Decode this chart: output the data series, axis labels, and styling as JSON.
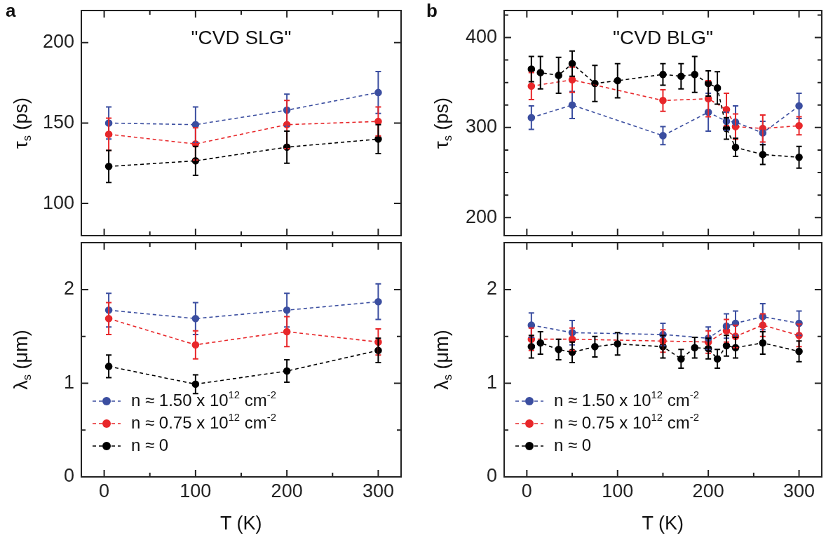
{
  "chart_data": [
    {
      "type": "line",
      "title": "\"CVD SLG\"",
      "ylabel": "τ$_{s}$ (ps)",
      "annotations": [
        "a"
      ],
      "xlim": [
        -25,
        325
      ],
      "xticks": [
        0,
        {
          "value": 50,
          "label": null
        },
        100,
        {
          "value": 150,
          "label": null
        },
        200,
        {
          "value": 250,
          "label": null
        },
        300
      ],
      "ylim": [
        80,
        220
      ],
      "yticks": [
        100,
        150,
        200
      ],
      "tick_labels": "y",
      "marker": "circle",
      "line_style": "dashed",
      "x": [
        5,
        100,
        200,
        300
      ],
      "series": [
        {
          "color": "#3b4ea0",
          "values": [
            150,
            149,
            158,
            169
          ],
          "errors": [
            10,
            11,
            10,
            13
          ]
        },
        {
          "color": "#e8272a",
          "values": [
            143,
            137,
            149,
            151
          ],
          "errors": [
            10,
            10,
            15,
            9
          ]
        },
        {
          "color": "#000000",
          "values": [
            123,
            126.5,
            135,
            140
          ],
          "errors": [
            10,
            9,
            10,
            9
          ]
        }
      ]
    },
    {
      "type": "line",
      "xlabel": "T (K)",
      "ylabel": "λ$_{s}$ (μm)",
      "legend": "bottom left",
      "xlim": [
        -25,
        325
      ],
      "xticks": [
        0,
        {
          "value": 50,
          "label": null
        },
        100,
        {
          "value": 150,
          "label": null
        },
        200,
        {
          "value": 250,
          "label": null
        },
        300
      ],
      "ylim": [
        0,
        2.5
      ],
      "yticks": [
        0,
        {
          "value": 0.5,
          "label": null
        },
        1,
        {
          "value": 1.5,
          "label": null
        },
        2
      ],
      "marker": "circle",
      "line_style": "dashed",
      "x": [
        5,
        100,
        200,
        300
      ],
      "series": [
        {
          "name": "n ≈ 1.50 x 10$^{12}$ cm$^{-2}$",
          "color": "#3b4ea0",
          "values": [
            1.78,
            1.69,
            1.78,
            1.87
          ],
          "errors": [
            0.18,
            0.17,
            0.18,
            0.19
          ]
        },
        {
          "name": "n ≈ 0.75 x 10$^{12}$ cm$^{-2}$",
          "color": "#e8272a",
          "values": [
            1.69,
            1.41,
            1.55,
            1.44
          ],
          "errors": [
            0.17,
            0.15,
            0.16,
            0.14
          ]
        },
        {
          "name": "n ≈ 0",
          "color": "#000000",
          "values": [
            1.18,
            0.99,
            1.13,
            1.35
          ],
          "errors": [
            0.12,
            0.1,
            0.12,
            0.13
          ]
        }
      ]
    },
    {
      "type": "line",
      "title": "\"CVD BLG\"",
      "ylabel": "τ$_{s}$ (ps)",
      "annotations": [
        "b"
      ],
      "xlim": [
        -25,
        325
      ],
      "xticks": [
        0,
        {
          "value": 50,
          "label": null
        },
        100,
        {
          "value": 150,
          "label": null
        },
        200,
        {
          "value": 250,
          "label": null
        },
        300
      ],
      "ylim": [
        180,
        430
      ],
      "yticks": [
        200,
        {
          "value": 225,
          "label": null
        },
        {
          "value": 250,
          "label": null
        },
        {
          "value": 275,
          "label": null
        },
        300,
        {
          "value": 325,
          "label": null
        },
        {
          "value": 350,
          "label": null
        },
        {
          "value": 375,
          "label": null
        },
        400,
        {
          "value": 425,
          "label": null
        }
      ],
      "tick_labels": "y",
      "marker": "circle",
      "line_style": "dashed",
      "series": [
        {
          "color": "#3b4ea0",
          "x": [
            5,
            50,
            150,
            200,
            220,
            230,
            260,
            300
          ],
          "values": [
            311,
            325,
            291,
            317,
            307,
            306,
            294,
            324
          ],
          "errors": [
            13,
            15,
            10,
            21,
            10,
            18,
            13,
            14
          ]
        },
        {
          "color": "#e8272a",
          "x": [
            5,
            50,
            150,
            200,
            220,
            230,
            260,
            300
          ],
          "values": [
            346,
            353,
            330,
            332,
            320,
            301,
            299,
            302
          ],
          "errors": [
            15,
            14,
            12,
            20,
            18,
            14,
            15,
            10
          ]
        },
        {
          "color": "#000000",
          "x": [
            5,
            15,
            35,
            50,
            75,
            100,
            150,
            170,
            185,
            200,
            210,
            220,
            230,
            260,
            300
          ],
          "values": [
            365,
            361,
            358,
            371,
            349,
            352,
            359,
            357,
            359,
            349,
            344,
            299,
            278,
            270,
            267
          ],
          "errors": [
            14,
            18,
            20,
            14,
            20,
            19,
            12,
            14,
            20,
            14,
            18,
            12,
            10,
            11,
            12
          ]
        }
      ]
    },
    {
      "type": "line",
      "xlabel": "T (K)",
      "ylabel": "λ$_{s}$ (μm)",
      "legend": "bottom left",
      "xlim": [
        -25,
        325
      ],
      "xticks": [
        0,
        {
          "value": 50,
          "label": null
        },
        100,
        {
          "value": 150,
          "label": null
        },
        200,
        {
          "value": 250,
          "label": null
        },
        300
      ],
      "ylim": [
        0,
        2.5
      ],
      "yticks": [
        0,
        {
          "value": 0.5,
          "label": null
        },
        1,
        {
          "value": 1.5,
          "label": null
        },
        2
      ],
      "marker": "circle",
      "line_style": "dashed",
      "series": [
        {
          "name": "n ≈ 1.50 x 10$^{12}$ cm$^{-2}$",
          "color": "#3b4ea0",
          "x": [
            5,
            50,
            150,
            200,
            220,
            230,
            260,
            300
          ],
          "values": [
            1.62,
            1.54,
            1.52,
            1.48,
            1.61,
            1.64,
            1.71,
            1.64
          ],
          "errors": [
            0.13,
            0.13,
            0.12,
            0.12,
            0.13,
            0.13,
            0.14,
            0.13
          ]
        },
        {
          "name": "n ≈ 0.75 x 10$^{12}$ cm$^{-2}$",
          "color": "#e8272a",
          "x": [
            5,
            50,
            150,
            200,
            220,
            230,
            260,
            300
          ],
          "values": [
            1.47,
            1.47,
            1.45,
            1.44,
            1.56,
            1.5,
            1.62,
            1.51
          ],
          "errors": [
            0.12,
            0.12,
            0.12,
            0.12,
            0.12,
            0.12,
            0.12,
            0.12
          ]
        },
        {
          "name": "n ≈ 0",
          "color": "#000000",
          "x": [
            5,
            15,
            35,
            50,
            75,
            100,
            150,
            170,
            185,
            200,
            210,
            220,
            230,
            260,
            300
          ],
          "values": [
            1.39,
            1.43,
            1.36,
            1.33,
            1.39,
            1.42,
            1.39,
            1.26,
            1.38,
            1.37,
            1.26,
            1.4,
            1.38,
            1.43,
            1.34
          ],
          "errors": [
            0.12,
            0.12,
            0.11,
            0.11,
            0.11,
            0.12,
            0.12,
            0.1,
            0.11,
            0.11,
            0.1,
            0.11,
            0.11,
            0.12,
            0.11
          ]
        }
      ]
    }
  ]
}
